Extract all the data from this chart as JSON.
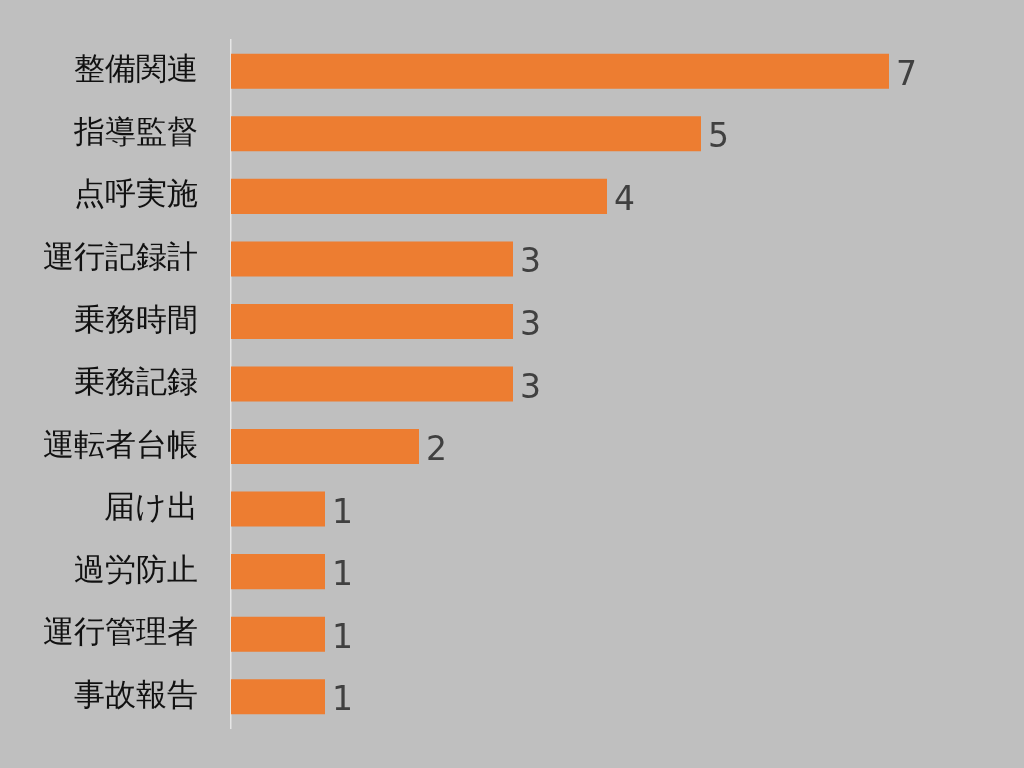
{
  "chart_data": {
    "type": "bar",
    "orientation": "horizontal",
    "categories": [
      "整備関連",
      "指導監督",
      "点呼実施",
      "運行記録計",
      "乗務時間",
      "乗務記録",
      "運転者台帳",
      "届け出",
      "過労防止",
      "運行管理者",
      "事故報告"
    ],
    "values": [
      7,
      5,
      4,
      3,
      3,
      3,
      2,
      1,
      1,
      1,
      1
    ],
    "color": "#ed7d31",
    "xlim": [
      0,
      7
    ],
    "data_labels": true,
    "tick_labels": "y"
  }
}
